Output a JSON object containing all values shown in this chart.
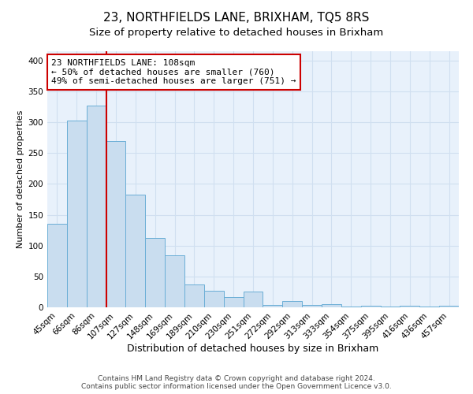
{
  "title": "23, NORTHFIELDS LANE, BRIXHAM, TQ5 8RS",
  "subtitle": "Size of property relative to detached houses in Brixham",
  "xlabel": "Distribution of detached houses by size in Brixham",
  "ylabel": "Number of detached properties",
  "bar_labels": [
    "45sqm",
    "66sqm",
    "86sqm",
    "107sqm",
    "127sqm",
    "148sqm",
    "169sqm",
    "189sqm",
    "210sqm",
    "230sqm",
    "251sqm",
    "272sqm",
    "292sqm",
    "313sqm",
    "333sqm",
    "354sqm",
    "375sqm",
    "395sqm",
    "416sqm",
    "436sqm",
    "457sqm"
  ],
  "bar_values": [
    135,
    303,
    327,
    270,
    183,
    113,
    84,
    37,
    27,
    17,
    25,
    4,
    10,
    4,
    5,
    1,
    3,
    1,
    3,
    1,
    3
  ],
  "bar_color": "#c9ddef",
  "bar_edge_color": "#6aaed6",
  "vline_index": 3,
  "vline_color": "#cc0000",
  "annotation_line1": "23 NORTHFIELDS LANE: 108sqm",
  "annotation_line2": "← 50% of detached houses are smaller (760)",
  "annotation_line3": "49% of semi-detached houses are larger (751) →",
  "annotation_box_color": "#ffffff",
  "annotation_box_edge": "#cc0000",
  "ylim": [
    0,
    415
  ],
  "yticks": [
    0,
    50,
    100,
    150,
    200,
    250,
    300,
    350,
    400
  ],
  "bg_color": "#e8f1fb",
  "grid_color": "#d0dff0",
  "footer_line1": "Contains HM Land Registry data © Crown copyright and database right 2024.",
  "footer_line2": "Contains public sector information licensed under the Open Government Licence v3.0.",
  "title_fontsize": 11,
  "subtitle_fontsize": 9.5,
  "xlabel_fontsize": 9,
  "ylabel_fontsize": 8,
  "tick_fontsize": 7.5,
  "footer_fontsize": 6.5,
  "annotation_fontsize": 8
}
